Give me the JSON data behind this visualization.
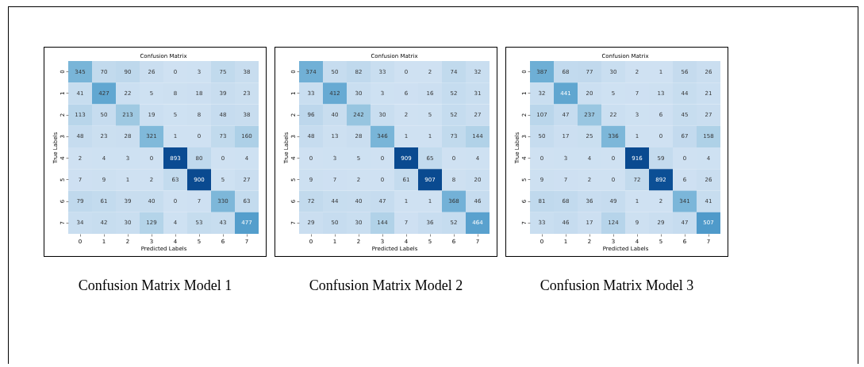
{
  "chart_data": [
    {
      "type": "heatmap",
      "title": "Confusion Matrix",
      "xlabel": "Predicted Labels",
      "ylabel": "True Labels",
      "annotations": [
        "Confusion Matrix Model 1"
      ],
      "categories": [
        "0",
        "1",
        "2",
        "3",
        "4",
        "5",
        "6",
        "7"
      ],
      "y_categories": [
        "0",
        "1",
        "2",
        "3",
        "4",
        "5",
        "6",
        "7"
      ],
      "cells": [
        [
          345,
          70,
          90,
          26,
          0,
          3,
          75,
          38
        ],
        [
          41,
          427,
          22,
          5,
          8,
          18,
          39,
          23
        ],
        [
          113,
          50,
          213,
          19,
          5,
          8,
          48,
          38
        ],
        [
          48,
          23,
          28,
          321,
          1,
          0,
          73,
          160
        ],
        [
          2,
          4,
          3,
          0,
          893,
          80,
          0,
          4
        ],
        [
          7,
          9,
          1,
          2,
          63,
          900,
          5,
          27
        ],
        [
          79,
          61,
          39,
          40,
          0,
          7,
          330,
          63
        ],
        [
          34,
          42,
          30,
          129,
          4,
          53,
          43,
          477
        ]
      ],
      "data_labels": true
    },
    {
      "type": "heatmap",
      "title": "Confusion Matrix",
      "xlabel": "Predicted Labels",
      "ylabel": "True Labels",
      "annotations": [
        "Confusion Matrix Model 2"
      ],
      "categories": [
        "0",
        "1",
        "2",
        "3",
        "4",
        "5",
        "6",
        "7"
      ],
      "y_categories": [
        "0",
        "1",
        "2",
        "3",
        "4",
        "5",
        "6",
        "7"
      ],
      "cells": [
        [
          374,
          50,
          82,
          33,
          0,
          2,
          74,
          32
        ],
        [
          33,
          412,
          30,
          3,
          6,
          16,
          52,
          31
        ],
        [
          96,
          40,
          242,
          30,
          2,
          5,
          52,
          27
        ],
        [
          48,
          13,
          28,
          346,
          1,
          1,
          73,
          144
        ],
        [
          0,
          3,
          5,
          0,
          909,
          65,
          0,
          4
        ],
        [
          9,
          7,
          2,
          0,
          61,
          907,
          8,
          20
        ],
        [
          72,
          44,
          40,
          47,
          1,
          1,
          368,
          46
        ],
        [
          29,
          50,
          30,
          144,
          7,
          36,
          52,
          464
        ]
      ],
      "data_labels": true
    },
    {
      "type": "heatmap",
      "title": "Confusion Matrix",
      "xlabel": "Predicted Labels",
      "ylabel": "True Labels",
      "annotations": [
        "Confusion Matrix Model 3"
      ],
      "categories": [
        "0",
        "1",
        "2",
        "3",
        "4",
        "5",
        "6",
        "7"
      ],
      "y_categories": [
        "0",
        "1",
        "2",
        "3",
        "4",
        "5",
        "6",
        "7"
      ],
      "cells": [
        [
          387,
          68,
          77,
          30,
          2,
          1,
          56,
          26
        ],
        [
          32,
          441,
          20,
          5,
          7,
          13,
          44,
          21
        ],
        [
          107,
          47,
          237,
          22,
          3,
          6,
          45,
          27
        ],
        [
          50,
          17,
          25,
          336,
          1,
          0,
          67,
          158
        ],
        [
          0,
          3,
          4,
          0,
          916,
          59,
          0,
          4
        ],
        [
          9,
          7,
          2,
          0,
          72,
          892,
          6,
          26
        ],
        [
          81,
          68,
          36,
          49,
          1,
          2,
          341,
          41
        ],
        [
          33,
          46,
          17,
          124,
          9,
          29,
          47,
          507
        ]
      ],
      "data_labels": true
    }
  ]
}
